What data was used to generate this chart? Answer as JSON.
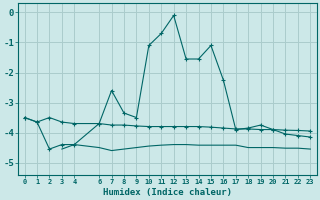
{
  "xlabel": "Humidex (Indice chaleur)",
  "background_color": "#cce8e8",
  "grid_color": "#aacccc",
  "line_color": "#006666",
  "xlim": [
    -0.5,
    23.5
  ],
  "ylim": [
    -5.4,
    0.3
  ],
  "yticks": [
    0,
    -1,
    -2,
    -3,
    -4,
    -5
  ],
  "xticks": [
    0,
    1,
    2,
    3,
    4,
    6,
    7,
    8,
    9,
    10,
    11,
    12,
    13,
    14,
    15,
    16,
    17,
    18,
    19,
    20,
    21,
    22,
    23
  ],
  "line1_x": [
    0,
    1,
    2,
    3,
    4,
    6,
    7,
    8,
    9,
    10,
    11,
    12,
    13,
    14,
    15,
    16,
    17,
    18,
    19,
    20,
    21,
    22,
    23
  ],
  "line1_y": [
    -3.5,
    -3.65,
    -3.5,
    -3.65,
    -3.7,
    -3.7,
    -3.75,
    -3.75,
    -3.78,
    -3.8,
    -3.8,
    -3.8,
    -3.8,
    -3.8,
    -3.82,
    -3.85,
    -3.88,
    -3.88,
    -3.9,
    -3.9,
    -3.92,
    -3.93,
    -3.95
  ],
  "line2_x": [
    0,
    1,
    2,
    3,
    4,
    6,
    7,
    8,
    9,
    10,
    11,
    12,
    13,
    14,
    15,
    16,
    17,
    18,
    19,
    20,
    21,
    22,
    23
  ],
  "line2_y": [
    -3.5,
    -3.65,
    -4.55,
    -4.4,
    -4.4,
    -3.7,
    -2.6,
    -3.35,
    -3.5,
    -1.1,
    -0.7,
    -0.1,
    -1.55,
    -1.55,
    -1.1,
    -2.25,
    -3.9,
    -3.85,
    -3.75,
    -3.9,
    -4.05,
    -4.1,
    -4.15
  ],
  "line3_x": [
    3,
    4,
    6,
    7,
    8,
    9,
    10,
    11,
    12,
    13,
    14,
    15,
    16,
    17,
    18,
    19,
    20,
    21,
    22,
    23
  ],
  "line3_y": [
    -4.55,
    -4.4,
    -4.5,
    -4.6,
    -4.55,
    -4.5,
    -4.45,
    -4.42,
    -4.4,
    -4.4,
    -4.42,
    -4.42,
    -4.42,
    -4.42,
    -4.5,
    -4.5,
    -4.5,
    -4.52,
    -4.52,
    -4.55
  ],
  "figsize": [
    3.2,
    2.0
  ],
  "dpi": 100
}
